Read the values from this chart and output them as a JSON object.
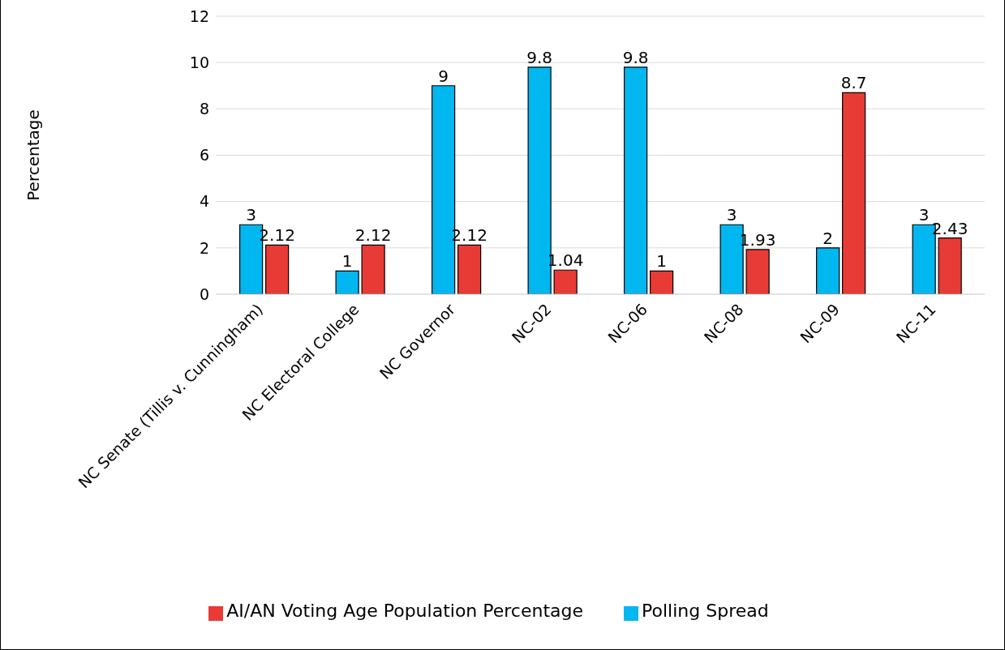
{
  "chart_data": {
    "type": "bar",
    "ylabel": "Percentage",
    "categories": [
      "NC Senate (Tillis v. Cunningham)",
      "NC Electoral College",
      "NC Governor",
      "NC-02",
      "NC-06",
      "NC-08",
      "NC-09",
      "NC-11"
    ],
    "series": [
      {
        "name": "Polling Spread",
        "color": "#00b7ef",
        "values": [
          3,
          1,
          9,
          9.8,
          9.8,
          3,
          2,
          3
        ]
      },
      {
        "name": "AI/AN Voting Age Population Percentage",
        "color": "#e83b35",
        "values": [
          2.12,
          2.12,
          2.12,
          1.04,
          1,
          1.93,
          8.7,
          2.43
        ]
      }
    ],
    "ylim": [
      0,
      12
    ],
    "yticks": [
      0,
      2,
      4,
      6,
      8,
      10,
      12
    ],
    "grid": "y",
    "legend": "bottom",
    "data_labels": true
  }
}
